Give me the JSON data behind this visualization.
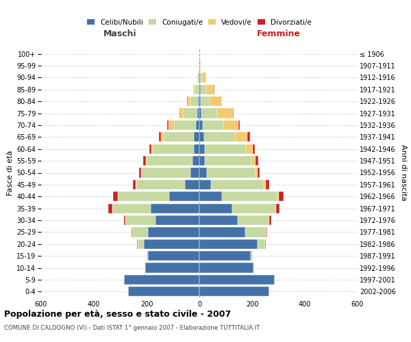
{
  "age_groups": [
    "0-4",
    "5-9",
    "10-14",
    "15-19",
    "20-24",
    "25-29",
    "30-34",
    "35-39",
    "40-44",
    "45-49",
    "50-54",
    "55-59",
    "60-64",
    "65-69",
    "70-74",
    "75-79",
    "80-84",
    "85-89",
    "90-94",
    "95-99",
    "100+"
  ],
  "birth_years": [
    "2002-2006",
    "1997-2001",
    "1992-1996",
    "1987-1991",
    "1982-1986",
    "1977-1981",
    "1972-1976",
    "1967-1971",
    "1962-1966",
    "1957-1961",
    "1952-1956",
    "1947-1951",
    "1942-1946",
    "1937-1941",
    "1932-1936",
    "1927-1931",
    "1922-1926",
    "1917-1921",
    "1912-1916",
    "1907-1911",
    "≤ 1906"
  ],
  "maschi": {
    "celibi": [
      270,
      285,
      205,
      195,
      210,
      195,
      165,
      185,
      115,
      55,
      35,
      25,
      22,
      20,
      12,
      8,
      5,
      3,
      2,
      1,
      1
    ],
    "coniugati": [
      0,
      0,
      2,
      5,
      25,
      60,
      115,
      145,
      195,
      185,
      185,
      175,
      155,
      115,
      85,
      55,
      30,
      15,
      5,
      1,
      0
    ],
    "vedovi": [
      0,
      0,
      0,
      0,
      0,
      0,
      0,
      0,
      0,
      1,
      1,
      2,
      5,
      10,
      20,
      15,
      10,
      5,
      2,
      0,
      0
    ],
    "divorziati": [
      0,
      0,
      0,
      0,
      1,
      2,
      5,
      15,
      18,
      12,
      8,
      10,
      8,
      8,
      5,
      1,
      1,
      0,
      0,
      0,
      0
    ]
  },
  "femmine": {
    "nubili": [
      265,
      285,
      205,
      195,
      220,
      175,
      145,
      125,
      85,
      45,
      28,
      22,
      22,
      18,
      12,
      8,
      5,
      5,
      3,
      1,
      1
    ],
    "coniugate": [
      0,
      1,
      2,
      8,
      30,
      80,
      120,
      165,
      210,
      200,
      185,
      175,
      155,
      120,
      80,
      60,
      35,
      20,
      8,
      2,
      0
    ],
    "vedove": [
      0,
      0,
      0,
      0,
      0,
      0,
      1,
      2,
      5,
      8,
      8,
      15,
      25,
      45,
      55,
      60,
      45,
      30,
      15,
      2,
      0
    ],
    "divorziate": [
      0,
      0,
      0,
      0,
      1,
      2,
      8,
      12,
      20,
      12,
      8,
      12,
      8,
      8,
      5,
      2,
      1,
      1,
      0,
      0,
      0
    ]
  },
  "colors": {
    "celibi": "#4472a8",
    "coniugati": "#c5d9a0",
    "vedovi": "#f5c96e",
    "divorziati": "#cc2222"
  },
  "legend_labels": [
    "Celibi/Nubili",
    "Coniugati/e",
    "Vedovi/e",
    "Divorziati/e"
  ],
  "title": "Popolazione per età, sesso e stato civile - 2007",
  "subtitle": "COMUNE DI CALDOGNO (VI) - Dati ISTAT 1° gennaio 2007 - Elaborazione TUTTITALIA.IT",
  "label_maschi": "Maschi",
  "label_femmine": "Femmine",
  "ylabel_left": "Fasce di età",
  "ylabel_right": "Anni di nascita",
  "xlim": 600,
  "background_color": "#ffffff",
  "grid_color": "#cccccc",
  "maschi_label_color": "#444444",
  "femmine_label_color": "#cc2222"
}
